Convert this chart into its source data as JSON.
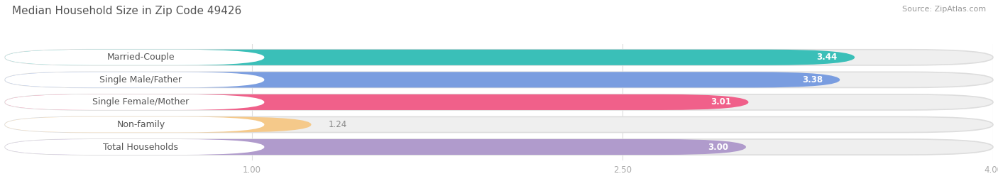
{
  "title": "Median Household Size in Zip Code 49426",
  "source": "Source: ZipAtlas.com",
  "categories": [
    "Married-Couple",
    "Single Male/Father",
    "Single Female/Mother",
    "Non-family",
    "Total Households"
  ],
  "values": [
    3.44,
    3.38,
    3.01,
    1.24,
    3.0
  ],
  "bar_colors": [
    "#3abfb8",
    "#7a9de0",
    "#f0608a",
    "#f5c98a",
    "#b09bcc"
  ],
  "label_bg_color": "#ffffff",
  "bar_bg_color": "#efefef",
  "background_color": "#ffffff",
  "xlim_data": [
    0,
    4.0
  ],
  "xticks": [
    1.0,
    2.5,
    4.0
  ],
  "label_fontsize": 9,
  "value_fontsize": 8.5,
  "title_fontsize": 11,
  "source_fontsize": 8,
  "title_color": "#555555",
  "label_text_color": "#555555",
  "value_color_inside": "#ffffff",
  "value_color_outside": "#888888",
  "tick_color": "#aaaaaa"
}
